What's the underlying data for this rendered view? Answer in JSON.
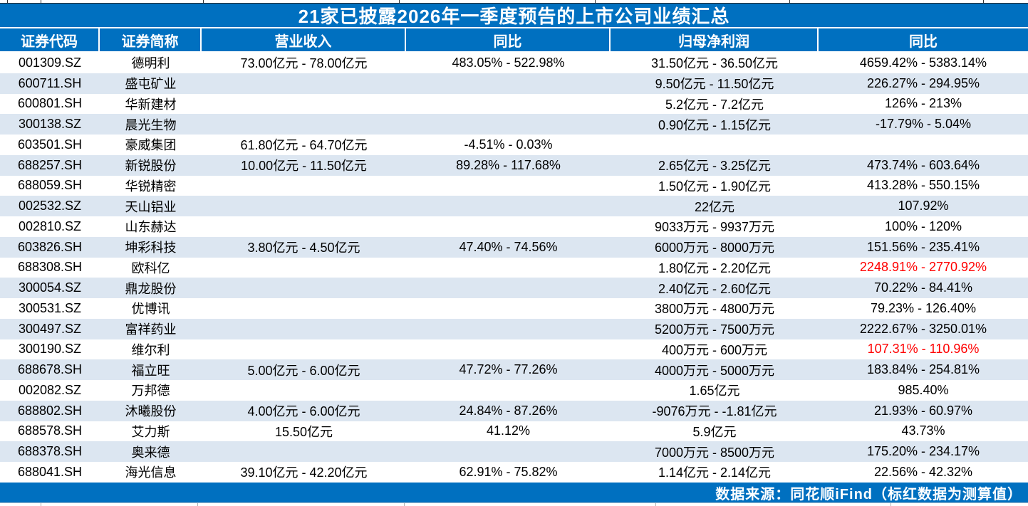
{
  "title": "21家已披露2026年一季度预告的上市公司业绩汇总",
  "footer": "数据来源：同花顺iFind（标红数据为测算值）",
  "colors": {
    "accent_blue": "#0070c0",
    "alt_row_blue": "#dce6f1",
    "highlight_red": "#ff0000",
    "text_black": "#000000",
    "header_text": "#ffffff"
  },
  "chart_data": {
    "type": "table",
    "title": "21家已披露2026年一季度预告的上市公司业绩汇总",
    "columns": [
      "证券代码",
      "证券简称",
      "营业收入",
      "同比",
      "归母净利润",
      "同比"
    ],
    "column_keys": [
      "code",
      "name",
      "revenue",
      "revenue-yoy",
      "net-profit",
      "profit-yoy"
    ],
    "legend_note": "标红数据为测算值",
    "source": "数据来源：同花顺iFind（标红数据为测算值）",
    "rows": [
      {
        "cells": [
          "001309.SZ",
          "德明利",
          "73.00亿元 - 78.00亿元",
          "483.05% - 522.98%",
          "31.50亿元 - 36.50亿元",
          "4659.42% - 5383.14%"
        ],
        "red_cols": []
      },
      {
        "cells": [
          "600711.SH",
          "盛屯矿业",
          "",
          "",
          "9.50亿元 - 11.50亿元",
          "226.27% - 294.95%"
        ],
        "red_cols": []
      },
      {
        "cells": [
          "600801.SH",
          "华新建材",
          "",
          "",
          "5.2亿元 - 7.2亿元",
          "126% - 213%"
        ],
        "red_cols": []
      },
      {
        "cells": [
          "300138.SZ",
          "晨光生物",
          "",
          "",
          "0.90亿元 - 1.15亿元",
          "-17.79% - 5.04%"
        ],
        "red_cols": []
      },
      {
        "cells": [
          "603501.SH",
          "豪威集团",
          "61.80亿元 - 64.70亿元",
          "-4.51% - 0.03%",
          "",
          ""
        ],
        "red_cols": []
      },
      {
        "cells": [
          "688257.SH",
          "新锐股份",
          "10.00亿元 - 11.50亿元",
          "89.28% - 117.68%",
          "2.65亿元 - 3.25亿元",
          "473.74% - 603.64%"
        ],
        "red_cols": []
      },
      {
        "cells": [
          "688059.SH",
          "华锐精密",
          "",
          "",
          "1.50亿元 - 1.90亿元",
          "413.28% - 550.15%"
        ],
        "red_cols": []
      },
      {
        "cells": [
          "002532.SZ",
          "天山铝业",
          "",
          "",
          "22亿元",
          "107.92%"
        ],
        "red_cols": []
      },
      {
        "cells": [
          "002810.SZ",
          "山东赫达",
          "",
          "",
          "9033万元 - 9937万元",
          "100% - 120%"
        ],
        "red_cols": []
      },
      {
        "cells": [
          "603826.SH",
          "坤彩科技",
          "3.80亿元 - 4.50亿元",
          "47.40% - 74.56%",
          "6000万元 - 8000万元",
          "151.56% - 235.41%"
        ],
        "red_cols": []
      },
      {
        "cells": [
          "688308.SH",
          "欧科亿",
          "",
          "",
          "1.80亿元 - 2.20亿元",
          "2248.91% - 2770.92%"
        ],
        "red_cols": [
          5
        ]
      },
      {
        "cells": [
          "300054.SZ",
          "鼎龙股份",
          "",
          "",
          "2.40亿元 - 2.60亿元",
          "70.22% - 84.41%"
        ],
        "red_cols": []
      },
      {
        "cells": [
          "300531.SZ",
          "优博讯",
          "",
          "",
          "3800万元 - 4800万元",
          "79.23% - 126.40%"
        ],
        "red_cols": []
      },
      {
        "cells": [
          "300497.SZ",
          "富祥药业",
          "",
          "",
          "5200万元 - 7500万元",
          "2222.67% - 3250.01%"
        ],
        "red_cols": []
      },
      {
        "cells": [
          "300190.SZ",
          "维尔利",
          "",
          "",
          "400万元 - 600万元",
          "107.31% - 110.96%"
        ],
        "red_cols": [
          5
        ]
      },
      {
        "cells": [
          "688678.SH",
          "福立旺",
          "5.00亿元 - 6.00亿元",
          "47.72% - 77.26%",
          "4000万元 - 5000万元",
          "183.84% - 254.81%"
        ],
        "red_cols": []
      },
      {
        "cells": [
          "002082.SZ",
          "万邦德",
          "",
          "",
          "1.65亿元",
          "985.40%"
        ],
        "red_cols": []
      },
      {
        "cells": [
          "688802.SH",
          "沐曦股份",
          "4.00亿元 - 6.00亿元",
          "24.84% - 87.26%",
          "-9076万元 - -1.81亿元",
          "21.93% - 60.97%"
        ],
        "red_cols": []
      },
      {
        "cells": [
          "688578.SH",
          "艾力斯",
          "15.50亿元",
          "41.12%",
          "5.9亿元",
          "43.73%"
        ],
        "red_cols": []
      },
      {
        "cells": [
          "688378.SH",
          "奥来德",
          "",
          "",
          "7000万元 - 8500万元",
          "175.20% - 234.17%"
        ],
        "red_cols": []
      },
      {
        "cells": [
          "688041.SH",
          "海光信息",
          "39.10亿元 - 42.20亿元",
          "62.91% - 75.82%",
          "1.14亿元 - 2.14亿元",
          "22.56% - 42.32%"
        ],
        "red_cols": []
      }
    ]
  },
  "edge_ticks_top_x": [
    10,
    57,
    285,
    560,
    835,
    1108,
    1380
  ],
  "edge_ticks_bottom_x": [
    57,
    277,
    567,
    920,
    1250
  ]
}
